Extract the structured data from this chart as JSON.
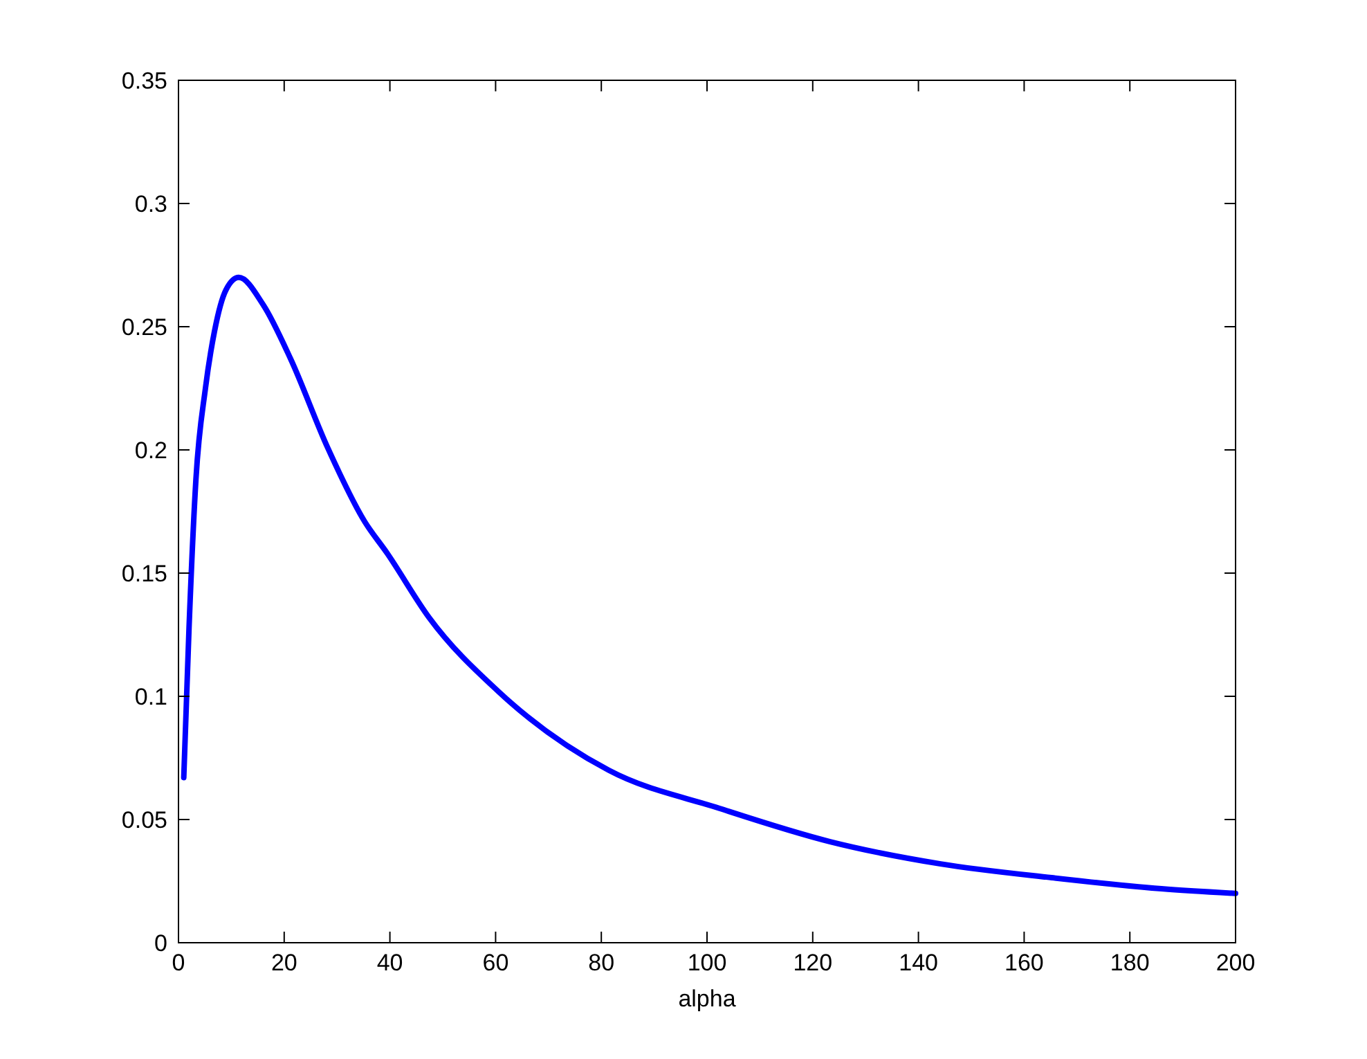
{
  "chart_data": {
    "type": "line",
    "xlabel": "alpha",
    "xlim": [
      0,
      200
    ],
    "xticks": [
      0,
      20,
      40,
      60,
      80,
      100,
      120,
      140,
      160,
      180,
      200
    ],
    "ylim": [
      0,
      0.35
    ],
    "yticks": [
      0,
      0.05,
      0.1,
      0.15,
      0.2,
      0.25,
      0.3,
      0.35
    ],
    "grid": false,
    "marker": "none",
    "line_style": "solid",
    "series": [
      {
        "color": "#0000ff",
        "x": [
          1,
          2,
          3.3,
          5.1,
          6.8,
          9,
          11.4,
          16,
          21.2,
          28.2,
          35.2,
          39.5,
          47.4,
          60.5,
          81.4,
          102.4,
          123.3,
          144.2,
          165.2,
          186,
          200
        ],
        "values": [
          0.067,
          0.128,
          0.188,
          0.225,
          0.248,
          0.265,
          0.27,
          0.259,
          0.237,
          0.201,
          0.171,
          0.158,
          0.132,
          0.102,
          0.07,
          0.0545,
          0.041,
          0.032,
          0.0264,
          0.0219,
          0.02
        ]
      }
    ]
  }
}
